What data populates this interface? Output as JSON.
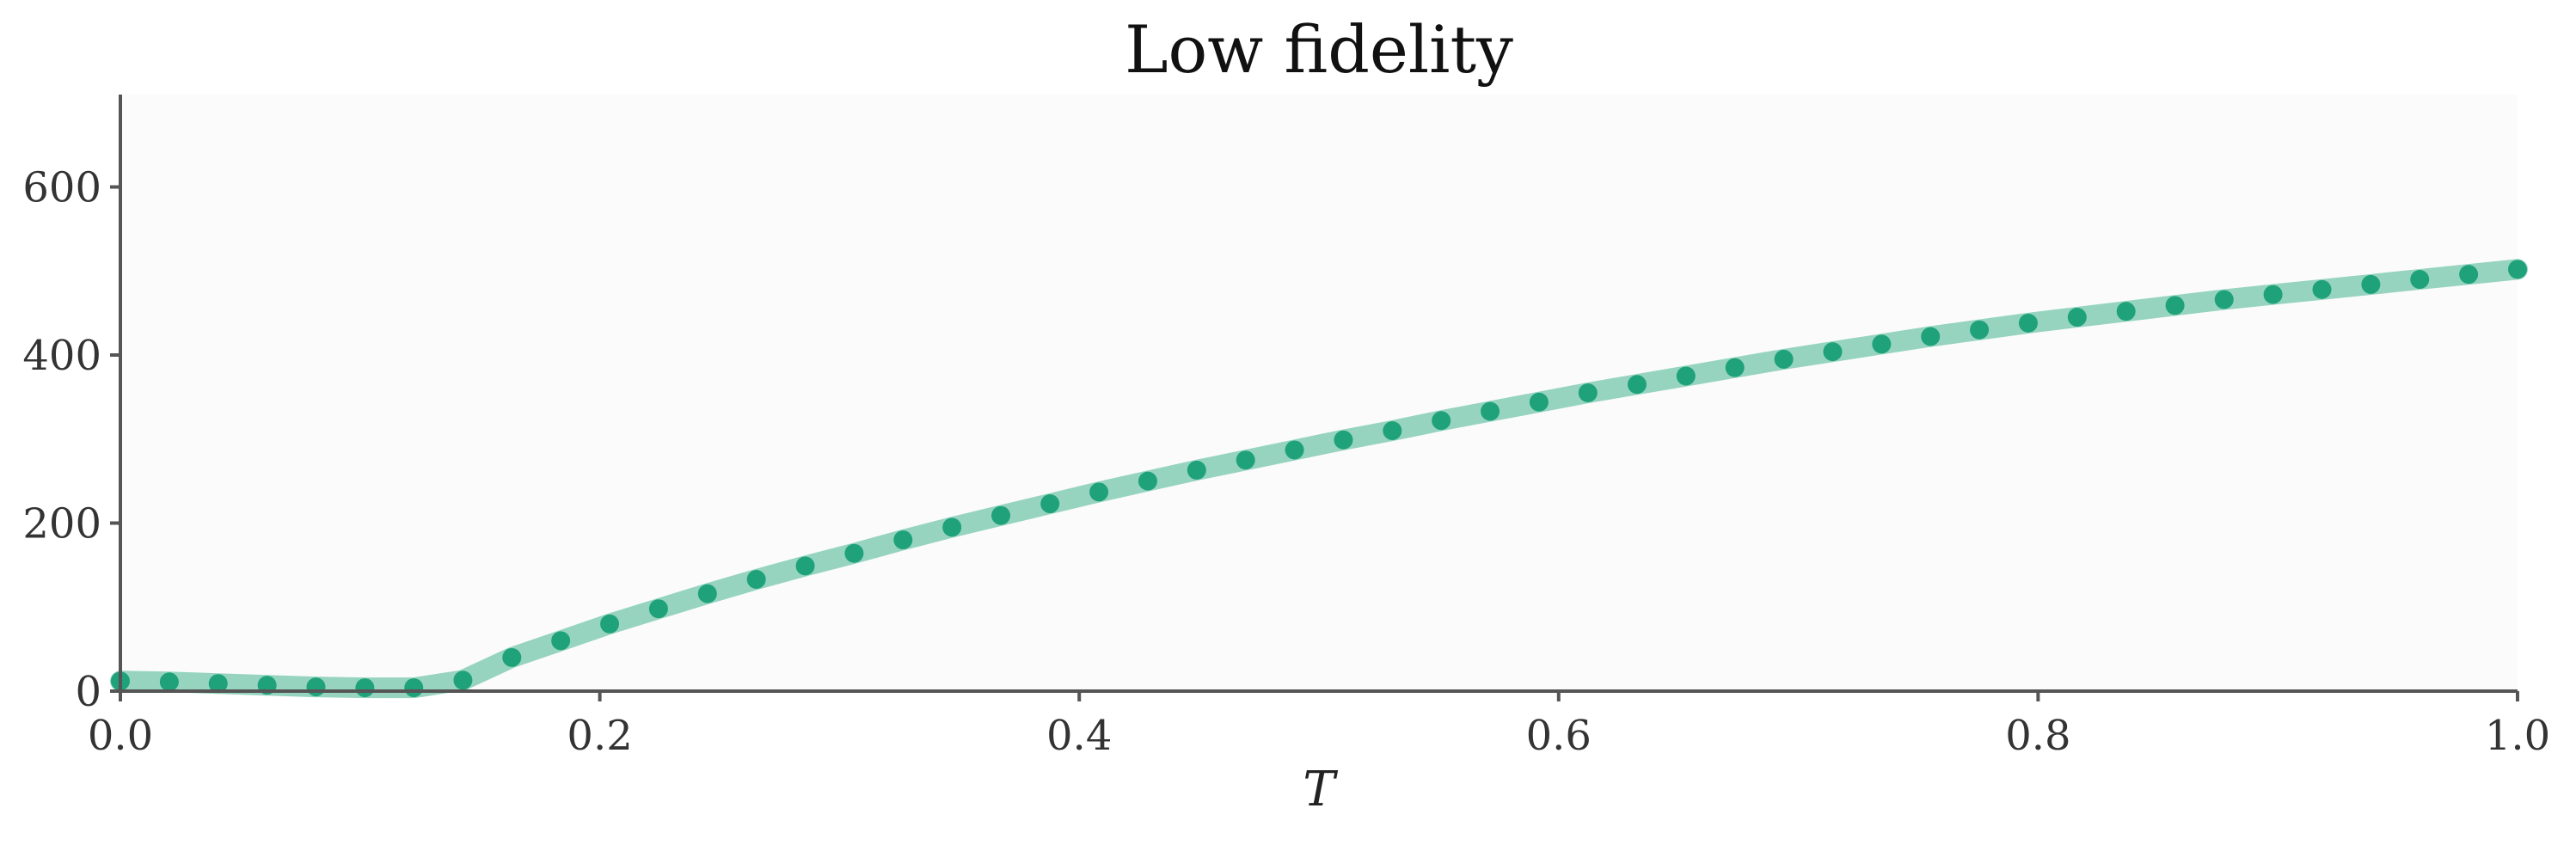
{
  "chart_data": {
    "type": "line",
    "title": "Low fidelity",
    "xlabel": "T",
    "ylabel": "",
    "xlim": [
      0.0,
      1.0
    ],
    "ylim": [
      0,
      710
    ],
    "xticks": [
      0.0,
      0.2,
      0.4,
      0.6,
      0.8,
      1.0
    ],
    "xtick_labels": [
      "0.0",
      "0.2",
      "0.4",
      "0.6",
      "0.8",
      "1.0"
    ],
    "yticks": [
      0,
      200,
      400,
      600
    ],
    "ytick_labels": [
      "0",
      "200",
      "400",
      "600"
    ],
    "grid": false,
    "colors": {
      "line": "#96d4c0",
      "marker": "#1fa27a",
      "plot_background": "#fbfbfb",
      "axis": "#555555"
    },
    "series": [
      {
        "x": [
          0.0,
          0.0204,
          0.0408,
          0.0612,
          0.0816,
          0.102,
          0.1224,
          0.1429,
          0.1633,
          0.1837,
          0.2041,
          0.2245,
          0.2449,
          0.2653,
          0.2857,
          0.3061,
          0.3265,
          0.3469,
          0.3673,
          0.3878,
          0.4082,
          0.4286,
          0.449,
          0.4694,
          0.4898,
          0.5102,
          0.5306,
          0.551,
          0.5714,
          0.5918,
          0.6122,
          0.6327,
          0.6531,
          0.6735,
          0.6939,
          0.7143,
          0.7347,
          0.7551,
          0.7755,
          0.7959,
          0.8163,
          0.8367,
          0.8571,
          0.8776,
          0.898,
          0.9184,
          0.9388,
          0.9592,
          0.9796,
          1.0
        ],
        "values": [
          12,
          11,
          9,
          7,
          5,
          4,
          4,
          13,
          40,
          60,
          80,
          98,
          116,
          133,
          149,
          164,
          180,
          195,
          209,
          223,
          237,
          250,
          263,
          275,
          287,
          299,
          310,
          322,
          333,
          344,
          355,
          365,
          375,
          385,
          395,
          404,
          413,
          422,
          430,
          438,
          445,
          452,
          459,
          466,
          472,
          478,
          484,
          490,
          496,
          502
        ]
      }
    ]
  }
}
